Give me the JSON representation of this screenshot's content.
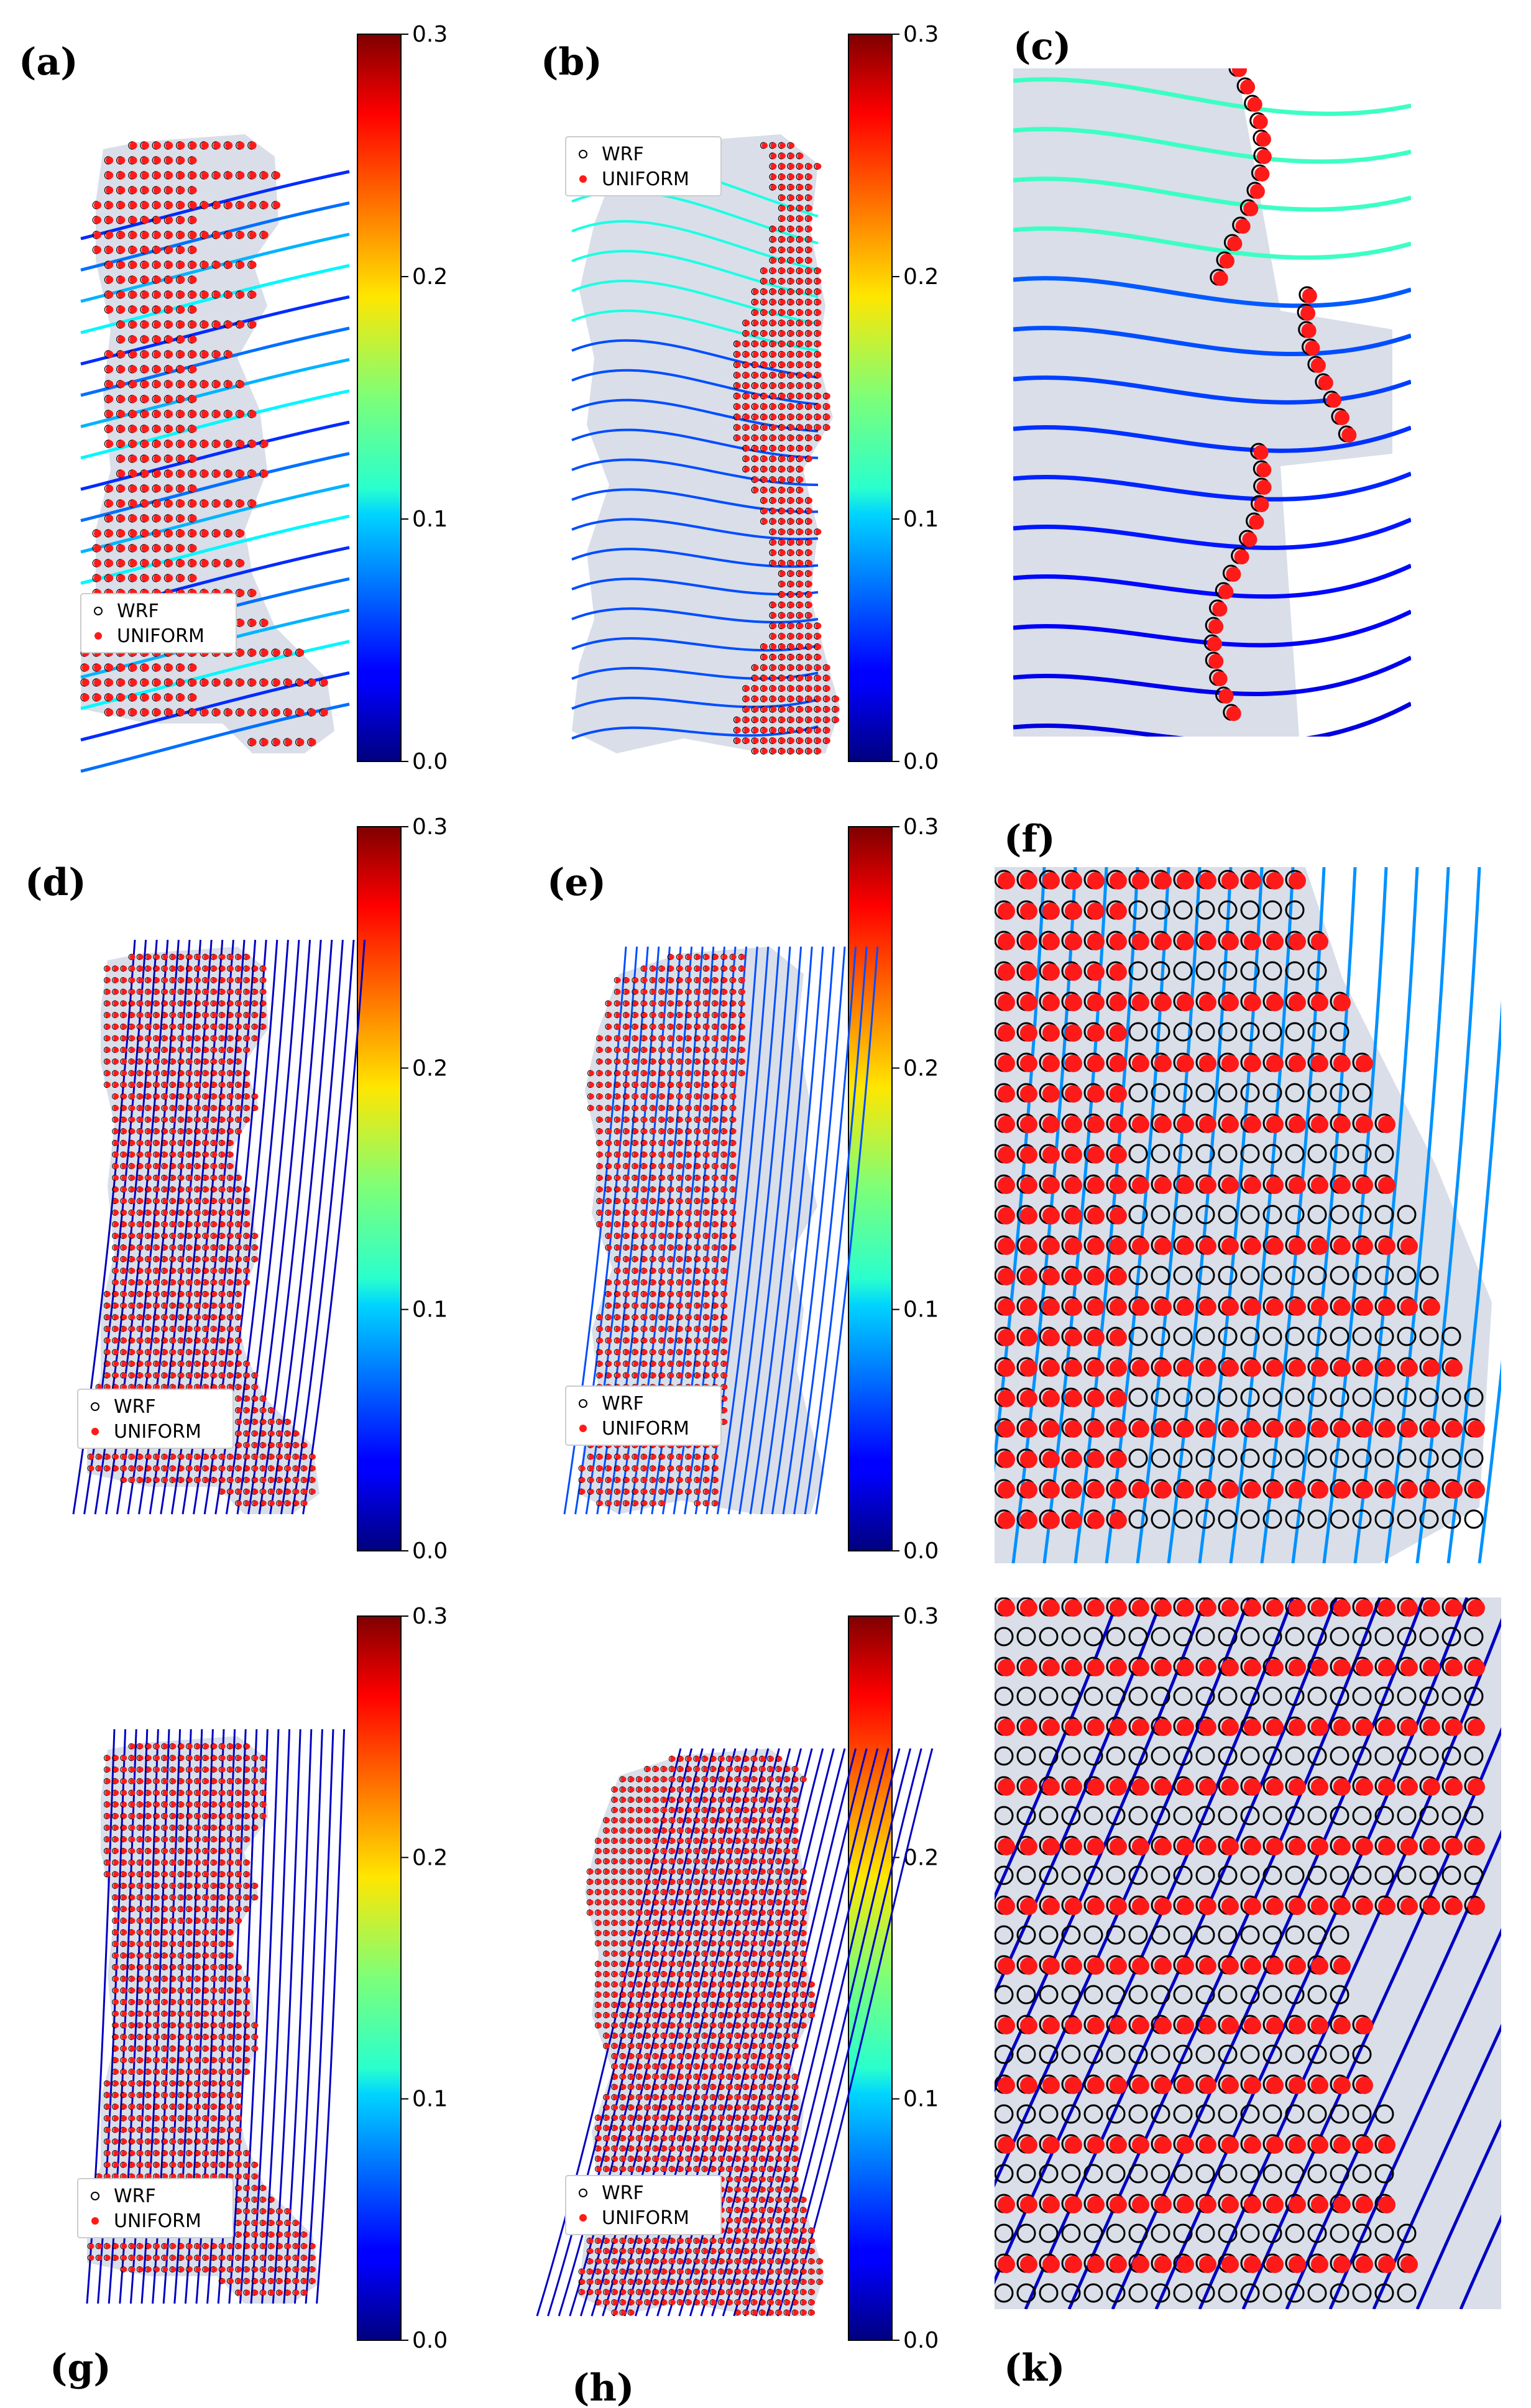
{
  "panel_labels": [
    "(a)",
    "(b)",
    "(c)",
    "(d)",
    "(e)",
    "(f)",
    "(g)",
    "(h)",
    "(k)"
  ],
  "colors": {
    "region": "#d9dee8",
    "uniform_marker": "#ff1a1a",
    "wrf_marker_edge": "#000000",
    "colormap": "jet"
  },
  "colorbar": {
    "ticks": [
      "0.3",
      "0.2",
      "0.1",
      "0.0"
    ],
    "range": [
      0.0,
      0.3
    ]
  },
  "legend": {
    "wrf": "WRF",
    "uniform": "UNIFORM"
  },
  "chart_data": [
    {
      "panel": "(a)",
      "type": "scatter",
      "series": [
        {
          "name": "WRF"
        },
        {
          "name": "UNIFORM"
        }
      ],
      "overlay": "streamlines",
      "stream_color_value": 0.11,
      "colorbar_range": [
        0.0,
        0.3
      ]
    },
    {
      "panel": "(b)",
      "type": "scatter",
      "series": [
        {
          "name": "WRF"
        },
        {
          "name": "UNIFORM"
        }
      ],
      "overlay": "streamlines",
      "stream_color_value": 0.08,
      "colorbar_range": [
        0.0,
        0.3
      ]
    },
    {
      "panel": "(c)",
      "type": "scatter",
      "series": [
        {
          "name": "WRF"
        },
        {
          "name": "UNIFORM"
        }
      ],
      "overlay": "streamlines",
      "stream_color_value": 0.09,
      "zoom_of": "(b)"
    },
    {
      "panel": "(d)",
      "type": "scatter",
      "series": [
        {
          "name": "WRF"
        },
        {
          "name": "UNIFORM"
        }
      ],
      "overlay": "streamlines",
      "stream_color_value": 0.02,
      "colorbar_range": [
        0.0,
        0.3
      ]
    },
    {
      "panel": "(e)",
      "type": "scatter",
      "series": [
        {
          "name": "WRF"
        },
        {
          "name": "UNIFORM"
        }
      ],
      "overlay": "streamlines",
      "stream_color_value": 0.06,
      "colorbar_range": [
        0.0,
        0.3
      ]
    },
    {
      "panel": "(f)",
      "type": "scatter",
      "series": [
        {
          "name": "WRF"
        },
        {
          "name": "UNIFORM"
        }
      ],
      "overlay": "streamlines",
      "stream_color_value": 0.08,
      "zoom_of": "(e)"
    },
    {
      "panel": "(g)",
      "type": "scatter",
      "series": [
        {
          "name": "WRF"
        },
        {
          "name": "UNIFORM"
        }
      ],
      "overlay": "streamlines",
      "stream_color_value": 0.02,
      "colorbar_range": [
        0.0,
        0.3
      ]
    },
    {
      "panel": "(h)",
      "type": "scatter",
      "series": [
        {
          "name": "WRF"
        },
        {
          "name": "UNIFORM"
        }
      ],
      "overlay": "streamlines",
      "stream_color_value": 0.02,
      "colorbar_range": [
        0.0,
        0.3
      ]
    },
    {
      "panel": "(k)",
      "type": "scatter",
      "series": [
        {
          "name": "WRF"
        },
        {
          "name": "UNIFORM"
        }
      ],
      "overlay": "streamlines",
      "stream_color_value": 0.02,
      "zoom_of": "(h)"
    }
  ]
}
